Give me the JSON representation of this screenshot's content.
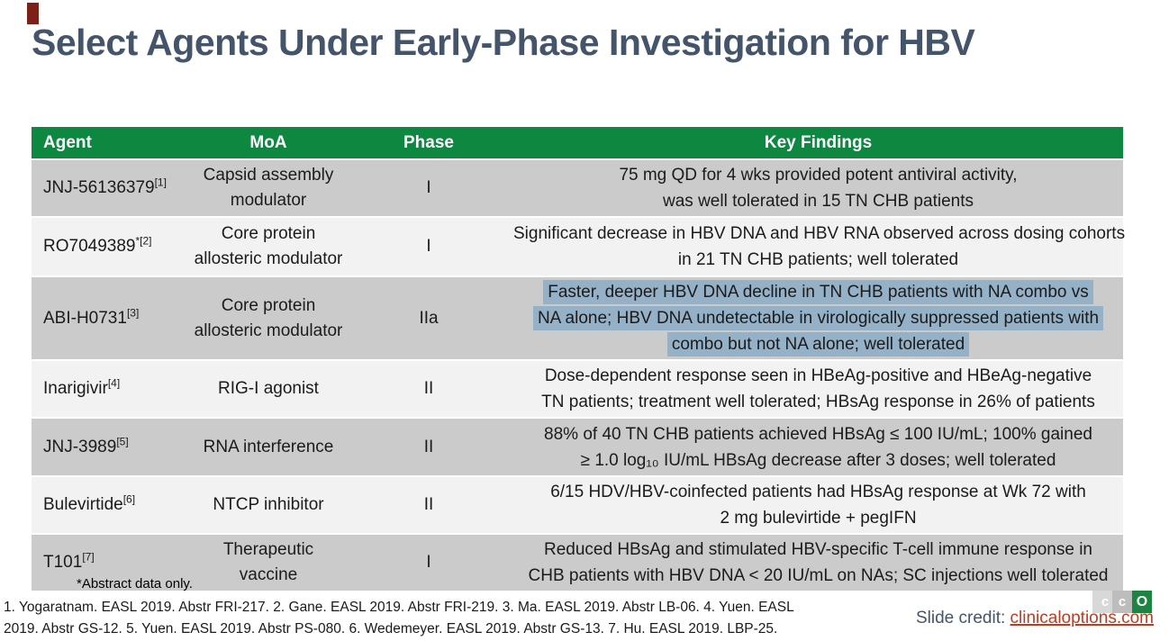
{
  "title": "Select Agents Under Early-Phase Investigation for HBV",
  "colors": {
    "accent_bar": "#7D2019",
    "header_green": "#0E8740",
    "row_gray": "#CBCBCB",
    "row_light": "#F2F2F2",
    "highlight_blue": "#95B1C8",
    "title_color": "#44546A",
    "link_red": "#C13B21",
    "logo_green": "#1E8444"
  },
  "table": {
    "headers": [
      "Agent",
      "MoA",
      "Phase",
      "Key Findings"
    ],
    "rows": [
      {
        "agent": "JNJ-56136379",
        "ref": "[1]",
        "moa_lines": [
          "Capsid assembly",
          "modulator"
        ],
        "phase": "I",
        "findings_lines": [
          "75 mg QD for 4 wks provided potent antiviral activity,",
          "was well tolerated in 15 TN CHB patients"
        ],
        "shade": "gray",
        "highlighted": false
      },
      {
        "agent": "RO7049389",
        "ref": "*[2]",
        "moa_lines": [
          "Core protein",
          "allosteric modulator"
        ],
        "phase": "I",
        "findings_lines": [
          "Significant decrease in HBV DNA and HBV RNA observed across dosing cohorts",
          "in 21 TN CHB patients; well tolerated"
        ],
        "shade": "light",
        "highlighted": false
      },
      {
        "agent": "ABI-H0731",
        "ref": "[3]",
        "moa_lines": [
          "Core protein",
          "allosteric modulator"
        ],
        "phase": "IIa",
        "findings_lines": [
          "Faster, deeper HBV DNA decline in TN CHB patients with NA combo vs",
          "NA alone; HBV DNA undetectable in virologically suppressed patients with",
          "combo but not NA alone; well tolerated"
        ],
        "shade": "gray",
        "highlighted": true
      },
      {
        "agent": "Inarigivir",
        "ref": "[4]",
        "moa_lines": [
          "RIG-I agonist"
        ],
        "phase": "II",
        "findings_lines": [
          "Dose-dependent response seen in HBeAg-positive and HBeAg-negative",
          "TN patients; treatment well tolerated; HBsAg response in 26% of patients"
        ],
        "shade": "light",
        "highlighted": false
      },
      {
        "agent": "JNJ-3989",
        "ref": "[5]",
        "moa_lines": [
          "RNA interference"
        ],
        "phase": "II",
        "findings_lines": [
          "88% of 40 TN CHB patients achieved HBsAg ≤ 100 IU/mL; 100% gained",
          "≥ 1.0 log₁₀ IU/mL HBsAg decrease after 3 doses; well tolerated"
        ],
        "shade": "gray",
        "highlighted": false
      },
      {
        "agent": "Bulevirtide",
        "ref": "[6]",
        "moa_lines": [
          "NTCP inhibitor"
        ],
        "phase": "II",
        "findings_lines": [
          "6/15 HDV/HBV-coinfected patients had HBsAg response at Wk 72 with",
          "2 mg bulevirtide + pegIFN"
        ],
        "shade": "light",
        "highlighted": false
      },
      {
        "agent": "T101",
        "ref": "[7]",
        "moa_lines": [
          "Therapeutic vaccine"
        ],
        "phase": "I",
        "findings_lines": [
          "Reduced HBsAg and stimulated HBV-specific T-cell immune response in",
          "CHB patients with HBV DNA < 20 IU/mL on NAs; SC injections well tolerated"
        ],
        "shade": "gray",
        "highlighted": false
      }
    ]
  },
  "footnote": "*Abstract data only.",
  "references": {
    "line1": "1. Yogaratnam. EASL 2019. Abstr FRI-217. 2. Gane. EASL 2019. Abstr FRI-219. 3. Ma. EASL 2019. Abstr LB-06. 4. Yuen. EASL",
    "line2": "2019. Abstr GS-12. 5. Yuen. EASL 2019. Abstr PS-080. 6. Wedemeyer. EASL 2019. Abstr GS-13. 7. Hu. EASL 2019. LBP-25."
  },
  "credit": {
    "label": "Slide credit: ",
    "link": "clinicaloptions.com"
  },
  "logo": {
    "letters": [
      "c",
      "c",
      "O"
    ]
  }
}
